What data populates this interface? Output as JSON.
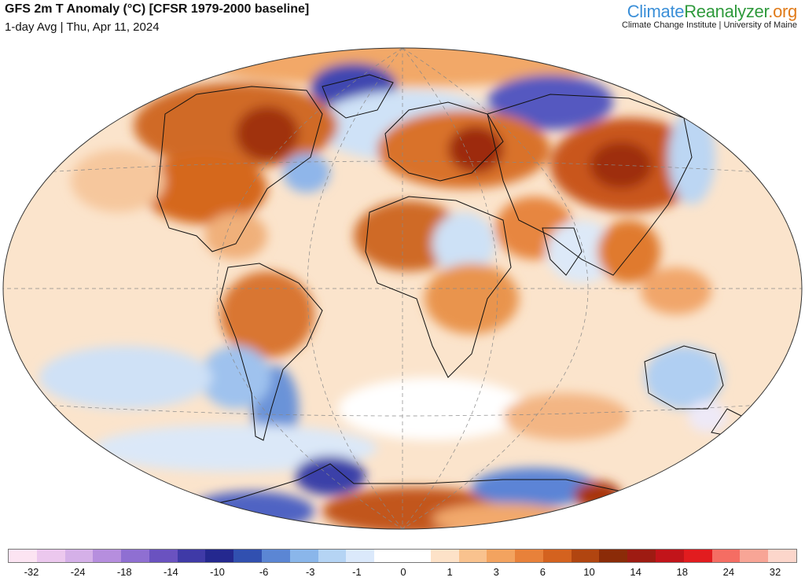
{
  "header": {
    "title": "GFS 2m T Anomaly (°C) [CFSR 1979-2000 baseline]",
    "subtitle": "1-day Avg | Thu, Apr 11, 2024"
  },
  "brand": {
    "name_part1": "Climate",
    "name_part2": "Reanalyzer",
    "name_part3": ".org",
    "subtitle": "Climate Change Institute | University of Maine",
    "colors": {
      "part1": "#3b8fd8",
      "part2": "#2f9a3c",
      "part3": "#e07b1a"
    }
  },
  "legend": {
    "colors": [
      "#fce4f2",
      "#ecc8ee",
      "#d5b0e8",
      "#b68ede",
      "#8f6fd2",
      "#6a52c0",
      "#3f3aa7",
      "#24288f",
      "#3150b0",
      "#5b86d4",
      "#8ab6ea",
      "#b5d4f4",
      "#dbe9fb",
      "#ffffff",
      "#ffffff",
      "#fde2c8",
      "#f9c28e",
      "#f3a35f",
      "#e8813a",
      "#d4621f",
      "#b14510",
      "#8b2b08",
      "#9e1b12",
      "#c2141a",
      "#e21c1f",
      "#f56d63",
      "#f8a596",
      "#fcd6cb"
    ],
    "tick_labels": [
      "-32",
      "-24",
      "-18",
      "-14",
      "-10",
      "-6",
      "-3",
      "-1",
      "0",
      "1",
      "3",
      "6",
      "10",
      "14",
      "18",
      "24",
      "32"
    ]
  }
}
